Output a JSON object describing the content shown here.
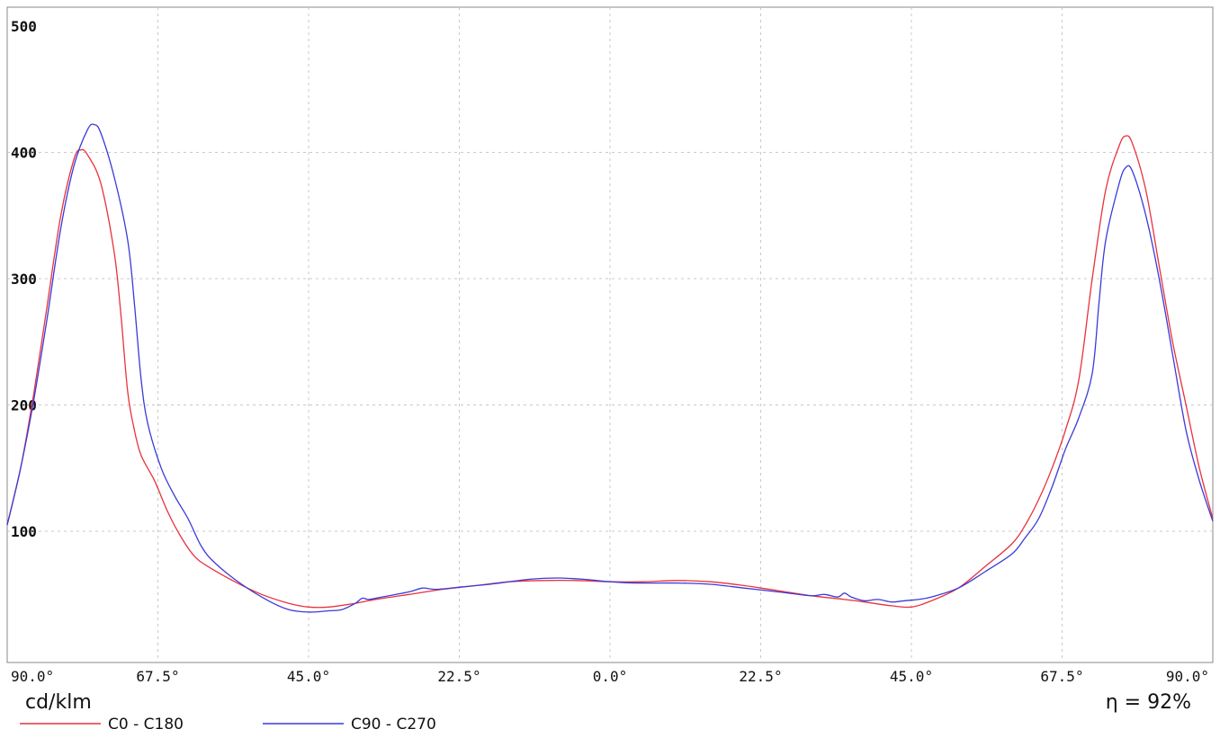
{
  "chart_data": {
    "type": "line",
    "title": "",
    "ylabel": "cd/klm",
    "efficiency_label": "η = 92%",
    "ylim": [
      0,
      500
    ],
    "xlim": [
      -90,
      90
    ],
    "y_ticks": [
      100,
      200,
      300,
      400,
      500
    ],
    "x_ticks": [
      {
        "value": -90,
        "label": "90.0°"
      },
      {
        "value": -67.5,
        "label": "67.5°"
      },
      {
        "value": -45,
        "label": "45.0°"
      },
      {
        "value": -22.5,
        "label": "22.5°"
      },
      {
        "value": 0,
        "label": "0.0°"
      },
      {
        "value": 22.5,
        "label": "22.5°"
      },
      {
        "value": 45,
        "label": "45.0°"
      },
      {
        "value": 67.5,
        "label": "67.5°"
      },
      {
        "value": 90,
        "label": "90.0°"
      }
    ],
    "grid": true,
    "legend_position": "bottom-left",
    "series": [
      {
        "name": "C0 - C180",
        "color": "#e8323c",
        "points": [
          [
            -90,
            105
          ],
          [
            -88,
            150
          ],
          [
            -86,
            210
          ],
          [
            -84,
            280
          ],
          [
            -82,
            350
          ],
          [
            -80,
            395
          ],
          [
            -79,
            402
          ],
          [
            -78,
            398
          ],
          [
            -76,
            375
          ],
          [
            -74,
            320
          ],
          [
            -73,
            270
          ],
          [
            -72,
            210
          ],
          [
            -71,
            180
          ],
          [
            -70,
            160
          ],
          [
            -68,
            140
          ],
          [
            -66,
            115
          ],
          [
            -64,
            95
          ],
          [
            -62,
            80
          ],
          [
            -60,
            72
          ],
          [
            -56,
            60
          ],
          [
            -52,
            50
          ],
          [
            -48,
            43
          ],
          [
            -45,
            40
          ],
          [
            -42,
            40
          ],
          [
            -38,
            43
          ],
          [
            -35,
            46
          ],
          [
            -30,
            50
          ],
          [
            -25,
            54
          ],
          [
            -20,
            57
          ],
          [
            -15,
            60
          ],
          [
            -10,
            61
          ],
          [
            -5,
            61
          ],
          [
            0,
            60
          ],
          [
            5,
            60
          ],
          [
            10,
            61
          ],
          [
            15,
            60
          ],
          [
            20,
            57
          ],
          [
            25,
            53
          ],
          [
            30,
            49
          ],
          [
            35,
            46
          ],
          [
            38,
            44
          ],
          [
            42,
            41
          ],
          [
            45,
            40
          ],
          [
            48,
            45
          ],
          [
            52,
            55
          ],
          [
            56,
            72
          ],
          [
            60,
            90
          ],
          [
            62,
            105
          ],
          [
            64,
            125
          ],
          [
            66,
            150
          ],
          [
            68,
            180
          ],
          [
            70,
            220
          ],
          [
            72,
            300
          ],
          [
            74,
            370
          ],
          [
            76,
            405
          ],
          [
            77,
            413
          ],
          [
            78,
            407
          ],
          [
            80,
            370
          ],
          [
            82,
            310
          ],
          [
            84,
            250
          ],
          [
            86,
            200
          ],
          [
            88,
            150
          ],
          [
            90,
            110
          ]
        ]
      },
      {
        "name": "C90 - C270",
        "color": "#3a3ad8",
        "points": [
          [
            -90,
            105
          ],
          [
            -88,
            150
          ],
          [
            -86,
            205
          ],
          [
            -84,
            270
          ],
          [
            -82,
            340
          ],
          [
            -80,
            390
          ],
          [
            -78,
            418
          ],
          [
            -77,
            422
          ],
          [
            -76,
            415
          ],
          [
            -74,
            380
          ],
          [
            -72,
            330
          ],
          [
            -71,
            280
          ],
          [
            -70,
            220
          ],
          [
            -69,
            185
          ],
          [
            -67,
            150
          ],
          [
            -65,
            128
          ],
          [
            -63,
            110
          ],
          [
            -61,
            88
          ],
          [
            -59,
            75
          ],
          [
            -55,
            58
          ],
          [
            -51,
            45
          ],
          [
            -48,
            38
          ],
          [
            -45,
            36
          ],
          [
            -42,
            37
          ],
          [
            -40,
            38
          ],
          [
            -38,
            43
          ],
          [
            -37,
            47
          ],
          [
            -36,
            46
          ],
          [
            -34,
            48
          ],
          [
            -30,
            52
          ],
          [
            -28,
            55
          ],
          [
            -26,
            54
          ],
          [
            -22,
            56
          ],
          [
            -18,
            58
          ],
          [
            -12,
            62
          ],
          [
            -8,
            63
          ],
          [
            -4,
            62
          ],
          [
            0,
            60
          ],
          [
            4,
            59
          ],
          [
            10,
            59
          ],
          [
            15,
            58
          ],
          [
            20,
            55
          ],
          [
            25,
            52
          ],
          [
            30,
            49
          ],
          [
            32,
            50
          ],
          [
            34,
            48
          ],
          [
            35,
            51
          ],
          [
            36,
            48
          ],
          [
            38,
            45
          ],
          [
            40,
            46
          ],
          [
            42,
            44
          ],
          [
            44,
            45
          ],
          [
            46,
            46
          ],
          [
            48,
            48
          ],
          [
            52,
            55
          ],
          [
            56,
            68
          ],
          [
            60,
            82
          ],
          [
            62,
            95
          ],
          [
            64,
            110
          ],
          [
            66,
            135
          ],
          [
            68,
            165
          ],
          [
            70,
            190
          ],
          [
            72,
            225
          ],
          [
            73,
            280
          ],
          [
            74,
            330
          ],
          [
            76,
            375
          ],
          [
            77,
            388
          ],
          [
            78,
            385
          ],
          [
            80,
            350
          ],
          [
            82,
            300
          ],
          [
            84,
            240
          ],
          [
            86,
            180
          ],
          [
            88,
            140
          ],
          [
            90,
            108
          ]
        ]
      }
    ]
  }
}
